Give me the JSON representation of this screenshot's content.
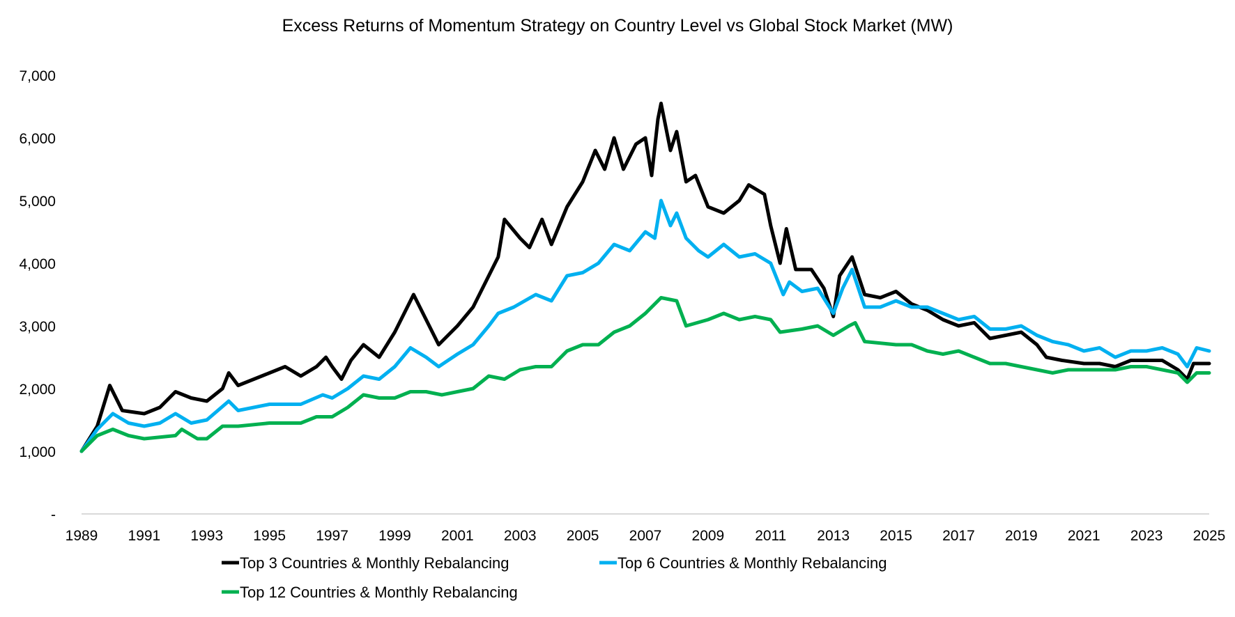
{
  "chart_data": {
    "type": "line",
    "title": "Excess Returns of Momentum Strategy on Country Level vs Global Stock Market (MW)",
    "xlabel": "",
    "ylabel": "",
    "xlim": [
      1989,
      2025
    ],
    "ylim": [
      0,
      7000
    ],
    "grid": false,
    "legend_placement": "bottom",
    "x_ticks": [
      "1989",
      "1991",
      "1993",
      "1995",
      "1997",
      "1999",
      "2001",
      "2003",
      "2005",
      "2007",
      "2009",
      "2011",
      "2013",
      "2015",
      "2017",
      "2019",
      "2021",
      "2023",
      "2025"
    ],
    "y_ticks": [
      {
        "value": 0,
        "label": "-"
      },
      {
        "value": 1000,
        "label": "1,000"
      },
      {
        "value": 2000,
        "label": "2,000"
      },
      {
        "value": 3000,
        "label": "3,000"
      },
      {
        "value": 4000,
        "label": "4,000"
      },
      {
        "value": 5000,
        "label": "5,000"
      },
      {
        "value": 6000,
        "label": "6,000"
      },
      {
        "value": 7000,
        "label": "7,000"
      }
    ],
    "series": [
      {
        "name": "Top 3 Countries & Monthly Rebalancing",
        "color": "#000000",
        "x": [
          1989,
          1989.5,
          1989.9,
          1990.3,
          1991,
          1991.5,
          1992,
          1992.5,
          1993,
          1993.5,
          1993.7,
          1994,
          1994.5,
          1995,
          1995.5,
          1996,
          1996.5,
          1996.8,
          1997,
          1997.3,
          1997.6,
          1998,
          1998.5,
          1999,
          1999.3,
          1999.6,
          2000,
          2000.4,
          2001,
          2001.5,
          2002,
          2002.3,
          2002.5,
          2003,
          2003.3,
          2003.7,
          2004,
          2004.5,
          2005,
          2005.4,
          2005.7,
          2006,
          2006.3,
          2006.7,
          2007,
          2007.2,
          2007.4,
          2007.5,
          2007.8,
          2008,
          2008.3,
          2008.6,
          2009,
          2009.5,
          2010,
          2010.3,
          2010.8,
          2011,
          2011.3,
          2011.5,
          2011.8,
          2012.3,
          2012.7,
          2013,
          2013.2,
          2013.6,
          2014,
          2014.5,
          2015,
          2015.5,
          2016,
          2016.5,
          2017,
          2017.5,
          2018,
          2018.5,
          2019,
          2019.5,
          2019.8,
          2020.3,
          2021,
          2021.5,
          2022,
          2022.5,
          2023,
          2023.5,
          2024,
          2024.3,
          2024.5,
          2025
        ],
        "y": [
          1000,
          1400,
          2050,
          1650,
          1600,
          1700,
          1950,
          1850,
          1800,
          2000,
          2250,
          2050,
          2150,
          2250,
          2350,
          2200,
          2350,
          2500,
          2350,
          2150,
          2450,
          2700,
          2500,
          2900,
          3200,
          3500,
          3100,
          2700,
          3000,
          3300,
          3800,
          4100,
          4700,
          4400,
          4250,
          4700,
          4300,
          4900,
          5300,
          5800,
          5500,
          6000,
          5500,
          5900,
          6000,
          5400,
          6300,
          6550,
          5800,
          6100,
          5300,
          5400,
          4900,
          4800,
          5000,
          5250,
          5100,
          4600,
          4000,
          4550,
          3900,
          3900,
          3600,
          3150,
          3800,
          4100,
          3500,
          3450,
          3550,
          3350,
          3250,
          3100,
          3000,
          3050,
          2800,
          2850,
          2900,
          2700,
          2500,
          2450,
          2400,
          2400,
          2350,
          2450,
          2450,
          2450,
          2300,
          2150,
          2400,
          2400
        ]
      },
      {
        "name": "Top 6 Countries & Monthly Rebalancing",
        "color": "#00B0F0",
        "x": [
          1989,
          1989.5,
          1990,
          1990.5,
          1991,
          1991.5,
          1992,
          1992.5,
          1993,
          1993.7,
          1994,
          1995,
          1996,
          1996.7,
          1997,
          1997.5,
          1998,
          1998.5,
          1999,
          1999.5,
          2000,
          2000.4,
          2001,
          2001.5,
          2002,
          2002.3,
          2002.8,
          2003.5,
          2004,
          2004.5,
          2005,
          2005.5,
          2006,
          2006.5,
          2007,
          2007.3,
          2007.5,
          2007.8,
          2008,
          2008.3,
          2008.7,
          2009,
          2009.5,
          2010,
          2010.5,
          2011,
          2011.4,
          2011.6,
          2012,
          2012.5,
          2013,
          2013.3,
          2013.6,
          2014,
          2014.5,
          2015,
          2015.5,
          2016,
          2016.5,
          2017,
          2017.5,
          2018,
          2018.5,
          2019,
          2019.5,
          2020,
          2020.5,
          2021,
          2021.5,
          2022,
          2022.5,
          2023,
          2023.5,
          2024,
          2024.3,
          2024.6,
          2025
        ],
        "y": [
          1000,
          1350,
          1600,
          1450,
          1400,
          1450,
          1600,
          1450,
          1500,
          1800,
          1650,
          1750,
          1750,
          1900,
          1850,
          2000,
          2200,
          2150,
          2350,
          2650,
          2500,
          2350,
          2550,
          2700,
          3000,
          3200,
          3300,
          3500,
          3400,
          3800,
          3850,
          4000,
          4300,
          4200,
          4500,
          4400,
          5000,
          4600,
          4800,
          4400,
          4200,
          4100,
          4300,
          4100,
          4150,
          4000,
          3500,
          3700,
          3550,
          3600,
          3200,
          3600,
          3900,
          3300,
          3300,
          3400,
          3300,
          3300,
          3200,
          3100,
          3150,
          2950,
          2950,
          3000,
          2850,
          2750,
          2700,
          2600,
          2650,
          2500,
          2600,
          2600,
          2650,
          2550,
          2350,
          2650,
          2600
        ]
      },
      {
        "name": "Top 12 Countries & Monthly Rebalancing",
        "color": "#00B050",
        "x": [
          1989,
          1989.5,
          1990,
          1990.5,
          1991,
          1992,
          1992.2,
          1992.7,
          1993,
          1993.5,
          1994,
          1995,
          1996,
          1996.5,
          1997,
          1997.5,
          1998,
          1998.5,
          1999,
          1999.5,
          2000,
          2000.5,
          2001,
          2001.5,
          2002,
          2002.5,
          2003,
          2003.5,
          2004,
          2004.5,
          2005,
          2005.5,
          2006,
          2006.5,
          2007,
          2007.5,
          2008,
          2008.3,
          2009,
          2009.5,
          2010,
          2010.5,
          2011,
          2011.3,
          2012,
          2012.5,
          2013,
          2013.5,
          2013.7,
          2014,
          2015,
          2015.5,
          2016,
          2016.5,
          2017,
          2017.5,
          2018,
          2018.5,
          2019,
          2019.5,
          2020,
          2020.5,
          2021,
          2022,
          2022.5,
          2023,
          2023.5,
          2024,
          2024.3,
          2024.6,
          2025
        ],
        "y": [
          1000,
          1250,
          1350,
          1250,
          1200,
          1250,
          1350,
          1200,
          1200,
          1400,
          1400,
          1450,
          1450,
          1550,
          1550,
          1700,
          1900,
          1850,
          1850,
          1950,
          1950,
          1900,
          1950,
          2000,
          2200,
          2150,
          2300,
          2350,
          2350,
          2600,
          2700,
          2700,
          2900,
          3000,
          3200,
          3450,
          3400,
          3000,
          3100,
          3200,
          3100,
          3150,
          3100,
          2900,
          2950,
          3000,
          2850,
          3000,
          3050,
          2750,
          2700,
          2700,
          2600,
          2550,
          2600,
          2500,
          2400,
          2400,
          2350,
          2300,
          2250,
          2300,
          2300,
          2300,
          2350,
          2350,
          2300,
          2250,
          2100,
          2250,
          2250
        ]
      }
    ]
  }
}
